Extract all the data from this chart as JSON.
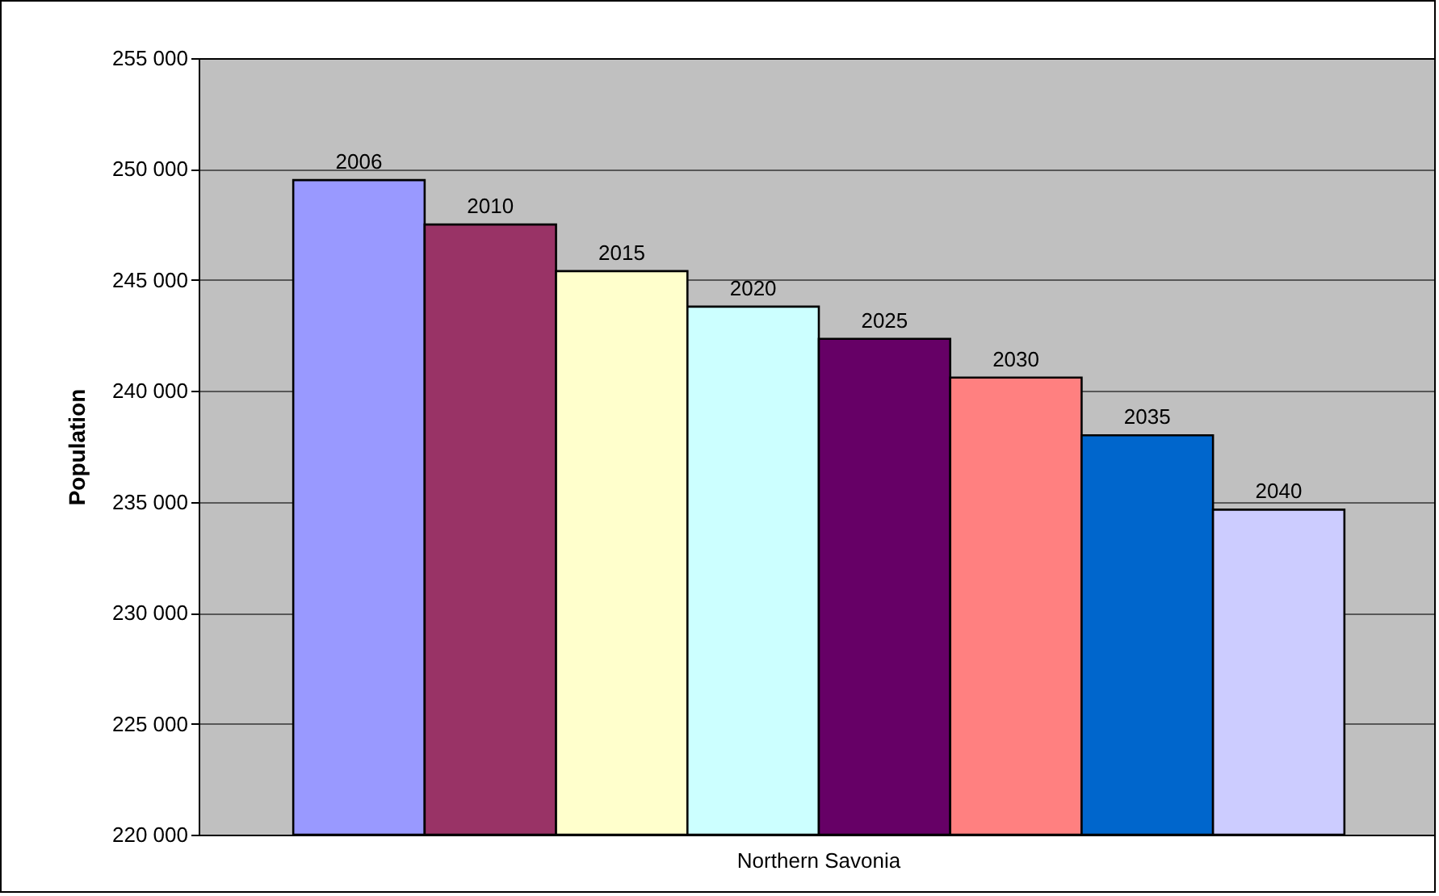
{
  "chart_data": {
    "type": "bar",
    "ylabel": "Population",
    "categories": [
      "Northern Savonia"
    ],
    "series": [
      {
        "name": "2006",
        "color": "#9999ff",
        "values": [
          249500
        ]
      },
      {
        "name": "2010",
        "color": "#993366",
        "values": [
          247500
        ]
      },
      {
        "name": "2015",
        "color": "#ffffcc",
        "values": [
          245400
        ]
      },
      {
        "name": "2020",
        "color": "#ccffff",
        "values": [
          243800
        ]
      },
      {
        "name": "2025",
        "color": "#660066",
        "values": [
          242350
        ]
      },
      {
        "name": "2030",
        "color": "#ff8080",
        "values": [
          240600
        ]
      },
      {
        "name": "2035",
        "color": "#0066cc",
        "values": [
          238000
        ]
      },
      {
        "name": "2040",
        "color": "#ccccff",
        "values": [
          234650
        ]
      }
    ],
    "ylim": [
      220000,
      255000
    ],
    "yticks": [
      {
        "value": 220000,
        "label": "220 000"
      },
      {
        "value": 225000,
        "label": "225 000"
      },
      {
        "value": 230000,
        "label": "230 000"
      },
      {
        "value": 235000,
        "label": "235 000"
      },
      {
        "value": 240000,
        "label": "240 000"
      },
      {
        "value": 245000,
        "label": "245 000"
      },
      {
        "value": 250000,
        "label": "250 000"
      },
      {
        "value": 255000,
        "label": "255 000"
      }
    ],
    "grid": "y",
    "legend": false
  }
}
